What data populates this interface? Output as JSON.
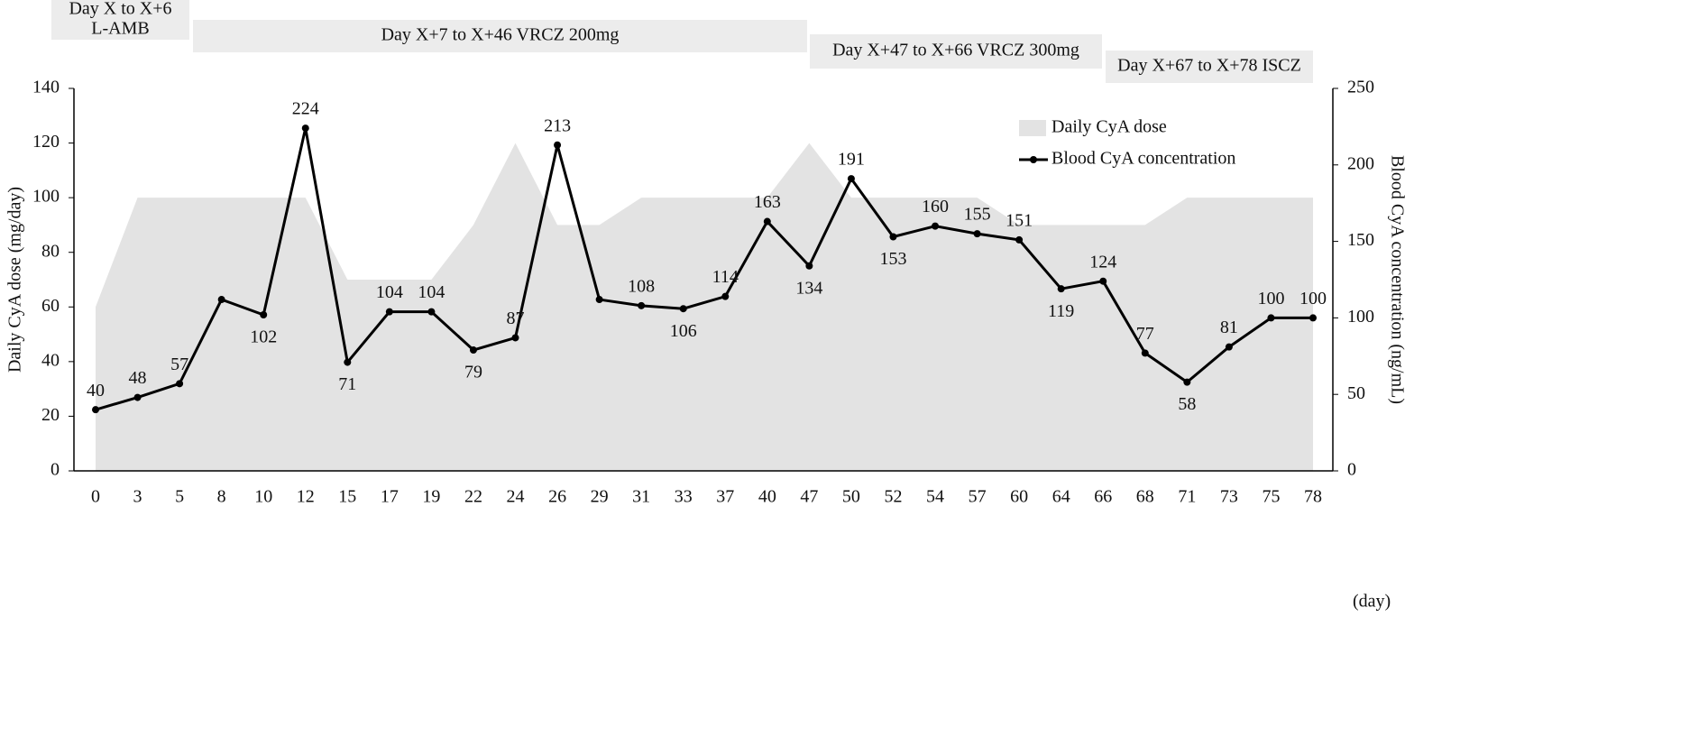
{
  "chart_data": {
    "type": "combo",
    "annotations": [
      {
        "lines": [
          "Day X to X+6",
          "L-AMB"
        ]
      },
      {
        "lines": [
          "Day X+7 to X+46  VRCZ 200mg"
        ]
      },
      {
        "lines": [
          "Day X+47 to X+66  VRCZ 300mg"
        ]
      },
      {
        "lines": [
          "Day X+67 to X+78  ISCZ"
        ]
      }
    ],
    "x_label": "(day)",
    "y_label": "Daily CyA dose (mg/day)",
    "y2_label": "Blood CyA concentration (ng/mL)",
    "categories": [
      0,
      3,
      5,
      8,
      10,
      12,
      15,
      17,
      19,
      22,
      24,
      26,
      29,
      31,
      33,
      37,
      40,
      47,
      50,
      52,
      54,
      57,
      60,
      64,
      66,
      68,
      71,
      73,
      75,
      78
    ],
    "series": [
      {
        "name": "Daily CyA dose",
        "type": "area",
        "color": "#e3e3e3",
        "values": [
          60,
          100,
          100,
          100,
          100,
          100,
          70,
          70,
          70,
          90,
          120,
          90,
          90,
          100,
          100,
          100,
          100,
          120,
          100,
          100,
          100,
          100,
          90,
          90,
          90,
          90,
          100,
          100,
          100,
          100
        ]
      },
      {
        "name": "Blood CyA concentration",
        "type": "line",
        "color": "#000000",
        "axis": "y2",
        "values": [
          40,
          48,
          57,
          112,
          102,
          224,
          71,
          104,
          104,
          79,
          87,
          213,
          112,
          108,
          106,
          114,
          163,
          134,
          191,
          153,
          160,
          155,
          151,
          119,
          124,
          77,
          58,
          81,
          100,
          100
        ],
        "value_labels": [
          "40",
          "48",
          "57",
          null,
          "102",
          "224",
          "71",
          "104",
          "104",
          "79",
          "87",
          "213",
          null,
          "108",
          "106",
          "114",
          "163",
          "134",
          "191",
          "153",
          "160",
          "155",
          "151",
          "119",
          "124",
          "77",
          "58",
          "81",
          "100",
          "100"
        ]
      }
    ],
    "ylim": [
      0,
      140
    ],
    "yticks": [
      0,
      20,
      40,
      60,
      80,
      100,
      120,
      140
    ],
    "y2lim": [
      0,
      250
    ],
    "y2ticks": [
      0,
      50,
      100,
      150,
      200,
      250
    ],
    "grid": false,
    "legend": "upper right"
  }
}
